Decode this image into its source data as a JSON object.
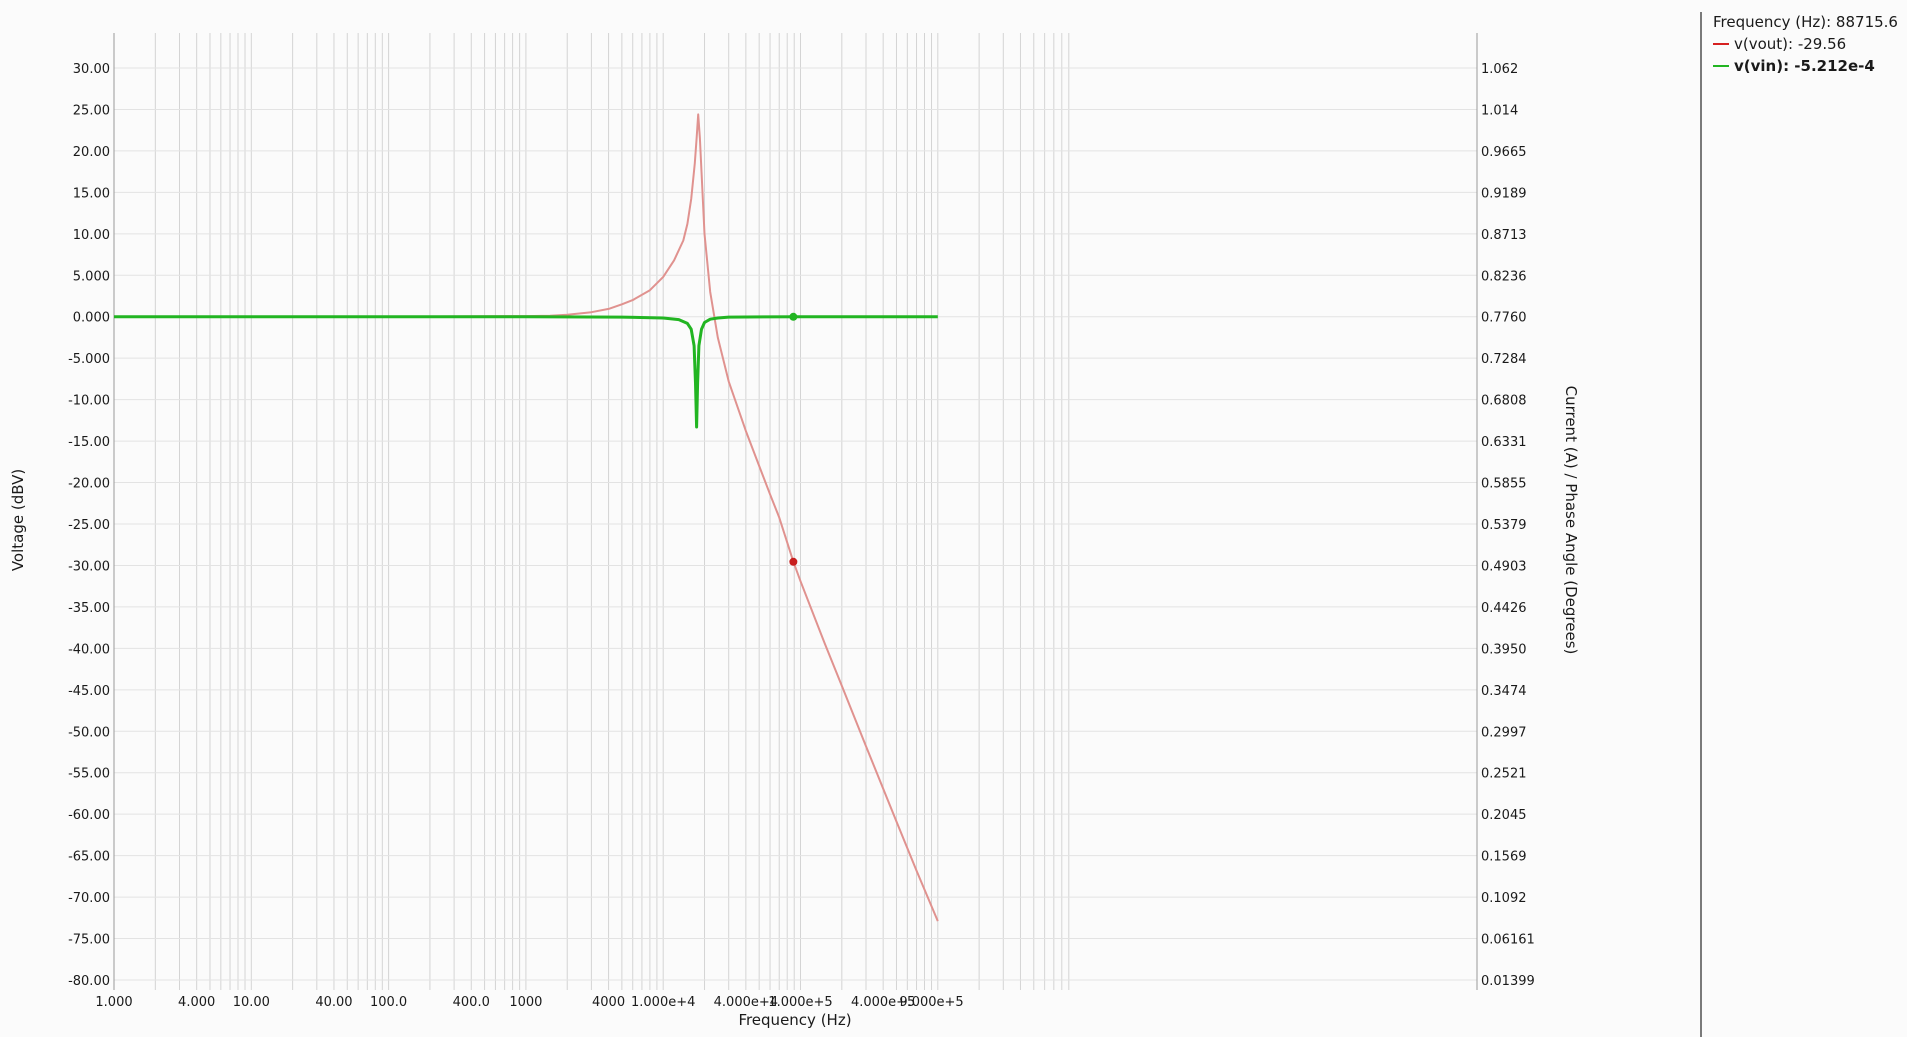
{
  "cursor": {
    "label": "Frequency (Hz): 88715.6",
    "frequency": 88715.6
  },
  "legend": [
    {
      "text": "v(vout): -29.56",
      "color": "#d62020",
      "active": false
    },
    {
      "text": "v(vin): -5.212e-4",
      "color": "#22b522",
      "active": true
    }
  ],
  "chart_data": {
    "type": "line",
    "xlabel": "Frequency (Hz)",
    "ylabel": "Voltage (dBV)",
    "y2label": "Current (A) / Phase Angle (Degrees)",
    "x_scale": "log",
    "xlim": [
      1,
      10000000
    ],
    "ylim": [
      -80,
      30
    ],
    "y2lim": [
      0.01399,
      1.062
    ],
    "x_ticks": [
      {
        "value": 1,
        "label": "1.000"
      },
      {
        "value": 4,
        "label": "4.000"
      },
      {
        "value": 10,
        "label": "10.00"
      },
      {
        "value": 40,
        "label": "40.00"
      },
      {
        "value": 100,
        "label": "100.0"
      },
      {
        "value": 400,
        "label": "400.0"
      },
      {
        "value": 1000,
        "label": "1000"
      },
      {
        "value": 4000,
        "label": "4000"
      },
      {
        "value": 10000,
        "label": "1.000e+4"
      },
      {
        "value": 40000,
        "label": "4.000e+4"
      },
      {
        "value": 100000,
        "label": "1.000e+5"
      },
      {
        "value": 400000,
        "label": "4.000e+5"
      },
      {
        "value": 900000,
        "label": "9.000e+5"
      }
    ],
    "y_ticks": [
      30,
      25,
      20,
      15,
      10,
      5,
      0,
      -5,
      -10,
      -15,
      -20,
      -25,
      -30,
      -35,
      -40,
      -45,
      -50,
      -55,
      -60,
      -65,
      -70,
      -75,
      -80
    ],
    "y_tick_labels": [
      "30.00",
      "25.00",
      "20.00",
      "15.00",
      "10.00",
      "5.000",
      "0.000",
      "-5.000",
      "-10.00",
      "-15.00",
      "-20.00",
      "-25.00",
      "-30.00",
      "-35.00",
      "-40.00",
      "-45.00",
      "-50.00",
      "-55.00",
      "-60.00",
      "-65.00",
      "-70.00",
      "-75.00",
      "-80.00"
    ],
    "y2_tick_labels": [
      "1.062",
      "1.014",
      "0.9665",
      "0.9189",
      "0.8713",
      "0.8236",
      "0.7760",
      "0.7284",
      "0.6808",
      "0.6331",
      "0.5855",
      "0.5379",
      "0.4903",
      "0.4426",
      "0.3950",
      "0.3474",
      "0.2997",
      "0.2521",
      "0.2045",
      "0.1569",
      "0.1092",
      "0.06161",
      "0.01399"
    ],
    "grid": true,
    "legend_position": "top-right",
    "series": [
      {
        "name": "v(vout)",
        "color": "#e0928f",
        "marker_color": "#c81e1e",
        "x": [
          1,
          10,
          100,
          1000,
          1500,
          2000,
          3000,
          4000,
          5000,
          6000,
          8000,
          10000,
          12000,
          14000,
          15000,
          16000,
          17000,
          17500,
          18000,
          18500,
          19000,
          20000,
          22000,
          25000,
          30000,
          40000,
          50000,
          60000,
          70000,
          88715.6,
          100000,
          150000,
          200000,
          300000,
          500000,
          700000,
          1000000
        ],
        "values": [
          0,
          0,
          0,
          0.08,
          0.12,
          0.25,
          0.55,
          0.95,
          1.5,
          2.0,
          3.2,
          4.8,
          6.8,
          9.2,
          11.2,
          14.2,
          18.5,
          21.5,
          24.4,
          21.5,
          17.5,
          10.0,
          3.0,
          -2.5,
          -7.8,
          -13.8,
          -18.0,
          -21.4,
          -24.2,
          -29.56,
          -31.9,
          -39.4,
          -44.5,
          -51.8,
          -60.9,
          -66.8,
          -72.9
        ]
      },
      {
        "name": "v(vin)",
        "color": "#22b522",
        "marker_color": "#22b522",
        "x": [
          1,
          1000,
          5000,
          10000,
          13000,
          15000,
          16000,
          16800,
          17200,
          17500,
          17800,
          18200,
          19000,
          20000,
          22000,
          25000,
          30000,
          100000,
          1000000
        ],
        "values": [
          0,
          0,
          -0.05,
          -0.15,
          -0.35,
          -0.8,
          -1.5,
          -3.5,
          -8.0,
          -13.3,
          -8.0,
          -3.5,
          -1.5,
          -0.7,
          -0.3,
          -0.15,
          -0.05,
          0,
          0
        ]
      }
    ],
    "cursor_x": 88715.6
  }
}
